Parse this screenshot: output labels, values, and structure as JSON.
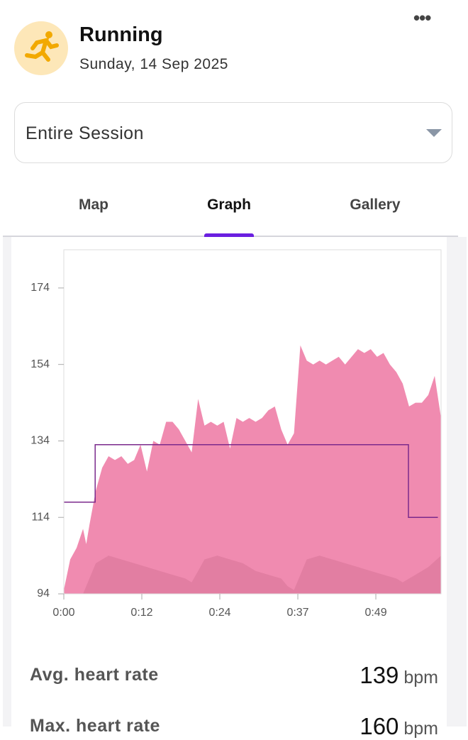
{
  "header": {
    "title": "Running",
    "date": "Sunday, 14 Sep 2025"
  },
  "selector": {
    "label": "Entire Session"
  },
  "tabs": [
    "Map",
    "Graph",
    "Gallery"
  ],
  "active_tab": 1,
  "chart_data": {
    "type": "area",
    "xlim": [
      0,
      59
    ],
    "xticks": [
      {
        "value": 0,
        "label": "0:00"
      },
      {
        "value": 12.2,
        "label": "0:12"
      },
      {
        "value": 24.4,
        "label": "0:24"
      },
      {
        "value": 36.6,
        "label": "0:37"
      },
      {
        "value": 48.8,
        "label": "0:49"
      }
    ],
    "ylim": [
      94,
      184
    ],
    "yticks": [
      94,
      114,
      134,
      154,
      174
    ],
    "series": [
      {
        "type": "area",
        "color": "#f08bb0",
        "x": [
          0,
          1,
          2,
          3,
          3.5,
          4,
          5,
          6,
          7,
          8,
          9,
          10,
          11,
          12,
          13,
          14,
          15,
          16,
          17,
          18,
          19,
          20,
          21,
          22,
          23,
          24,
          25,
          26,
          27,
          28,
          29,
          30,
          31,
          32,
          33,
          34,
          35,
          36,
          37,
          38,
          39,
          40,
          41,
          42,
          43,
          44,
          45,
          46,
          47,
          48,
          49,
          50,
          51,
          52,
          53,
          54,
          55,
          56,
          57,
          58,
          59
        ],
        "values": [
          95,
          103,
          106,
          111,
          107,
          112,
          121,
          127,
          130,
          129,
          130,
          128,
          129,
          133,
          126,
          134,
          133,
          139,
          139,
          137,
          134,
          131,
          145,
          138,
          139,
          138,
          139,
          132,
          140,
          139,
          140,
          139,
          140,
          142,
          143,
          137,
          133,
          136,
          159,
          155,
          154,
          155,
          154,
          155,
          156,
          154,
          156,
          158,
          157,
          158,
          156,
          157,
          154,
          152,
          149,
          143,
          144,
          144,
          146,
          151,
          140
        ]
      },
      {
        "type": "area",
        "color": "#e27ea2",
        "x": [
          0,
          3,
          5,
          7,
          9,
          11,
          13,
          15,
          17,
          19,
          20,
          21,
          22,
          24,
          26,
          28,
          30,
          32,
          34,
          35,
          36,
          37,
          38,
          40,
          42,
          44,
          46,
          48,
          50,
          52,
          53,
          55,
          57,
          59
        ],
        "values": [
          94,
          94,
          102,
          104,
          103,
          102,
          101,
          100,
          99,
          98,
          97,
          100,
          103,
          104,
          103,
          102,
          100,
          99,
          98,
          96,
          95,
          99,
          103,
          104,
          103,
          102,
          101,
          100,
          99,
          98,
          97,
          99,
          101,
          104
        ]
      },
      {
        "type": "line",
        "color": "#7b2a8c",
        "x": [
          0,
          4.9,
          4.9,
          53.9,
          53.9,
          58.5
        ],
        "values": [
          118,
          118,
          133,
          133,
          114,
          114
        ]
      }
    ]
  },
  "stats": [
    {
      "label": "Avg. heart rate",
      "value": 139,
      "unit": "bpm"
    },
    {
      "label": "Max. heart rate",
      "value": 160,
      "unit": "bpm"
    }
  ]
}
